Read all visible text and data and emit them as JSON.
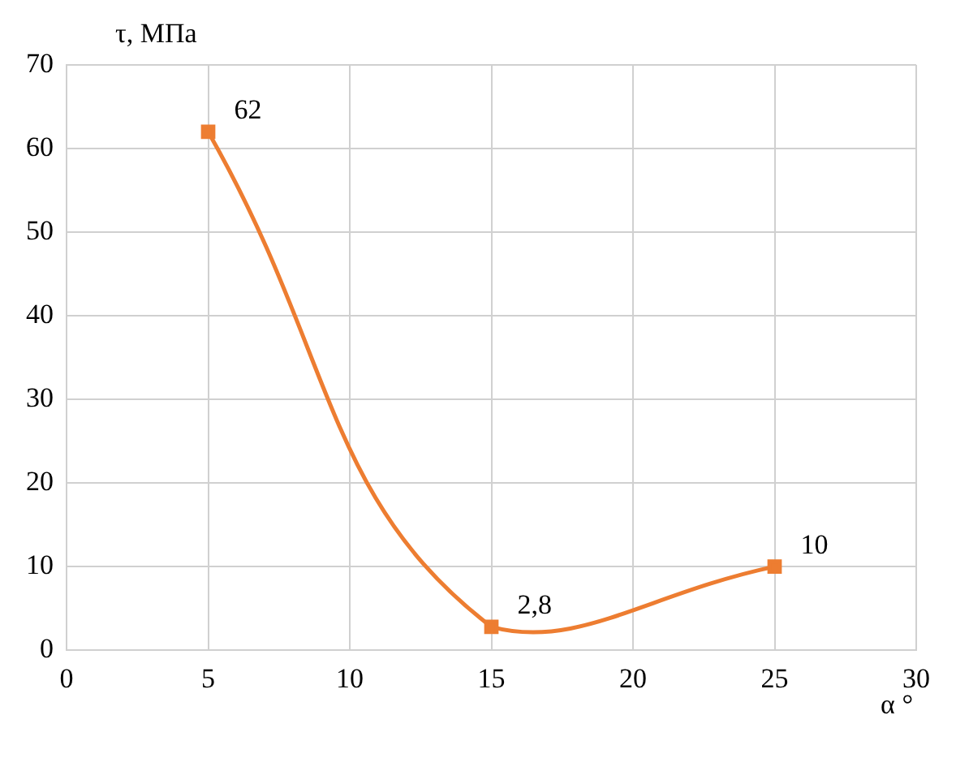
{
  "chart_data": {
    "type": "line",
    "xlabel": "α °",
    "ylabel": "τ, МПа",
    "x": [
      5,
      15,
      25
    ],
    "series": [
      {
        "color": "#ed7d31",
        "values": [
          62,
          2.8,
          10
        ],
        "value_labels": [
          "62",
          "2,8",
          "10"
        ]
      }
    ],
    "xlim": [
      0,
      30
    ],
    "xticks": [
      0,
      5,
      10,
      15,
      20,
      25,
      30
    ],
    "ylim": [
      0,
      70
    ],
    "yticks": [
      0,
      10,
      20,
      30,
      40,
      50,
      60,
      70
    ],
    "grid": true,
    "legend": false,
    "marker": "square",
    "line_style": "solid"
  }
}
